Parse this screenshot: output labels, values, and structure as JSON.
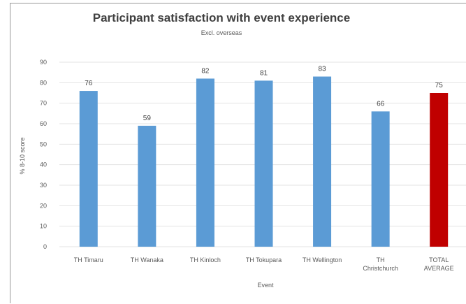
{
  "chart_data": {
    "type": "bar",
    "title": "Participant satisfaction with event experience",
    "subtitle": "Excl. overseas",
    "xlabel": "Event",
    "ylabel": "% 8-10 score",
    "ylim": [
      0,
      90
    ],
    "yticks": [
      0,
      10,
      20,
      30,
      40,
      50,
      60,
      70,
      80,
      90
    ],
    "grid": true,
    "categories": [
      "TH Timaru",
      "TH Wanaka",
      "TH Kinloch",
      "TH Tokupara",
      "TH Wellington",
      "TH Christchurch",
      "TOTAL AVERAGE"
    ],
    "category_lines": [
      [
        "TH Timaru"
      ],
      [
        "TH Wanaka"
      ],
      [
        "TH Kinloch"
      ],
      [
        "TH Tokupara"
      ],
      [
        "TH Wellington"
      ],
      [
        "TH",
        "Christchurch"
      ],
      [
        "TOTAL",
        "AVERAGE"
      ]
    ],
    "values": [
      76,
      59,
      82,
      81,
      83,
      66,
      75
    ],
    "colors": [
      "#5b9bd5",
      "#5b9bd5",
      "#5b9bd5",
      "#5b9bd5",
      "#5b9bd5",
      "#5b9bd5",
      "#c00000"
    ]
  }
}
